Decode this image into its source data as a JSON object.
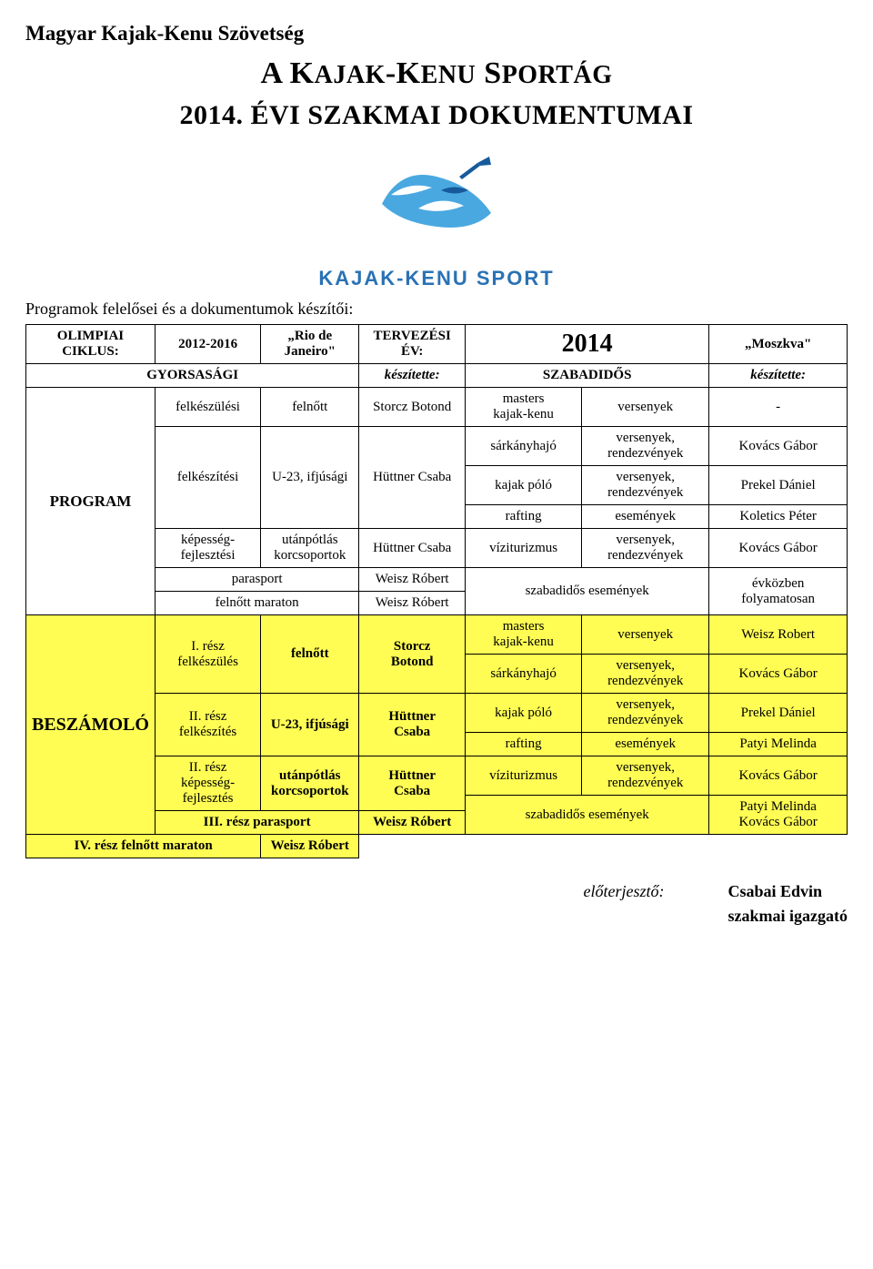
{
  "header": "Magyar Kajak-Kenu Szövetség",
  "mainTitle": {
    "pre": "A K",
    "mid1": "AJAK",
    "dash": "-K",
    "mid2": "ENU",
    "sp": " S",
    "mid3": "PORTÁG"
  },
  "subtitle": "2014. ÉVI SZAKMAI DOKUMENTUMAI",
  "logoText": "KAJAK-KENU SPORT",
  "subheading": "Programok felelősei és a dokumentumok készítői:",
  "row1": {
    "c1a": "OLIMPIAI",
    "c1b": "CIKLUS:",
    "c2": "2012-2016",
    "c3a": "„Rio de",
    "c3b": "Janeiro\"",
    "c4a": "TERVEZÉSI",
    "c4b": "ÉV:",
    "c5": "2014",
    "c6": "„Moszkva\""
  },
  "row2": {
    "c1": "GYORSASÁGI",
    "c2": "készítette:",
    "c3": "SZABADIDŐS",
    "c4": "készítette:"
  },
  "programLabel": "PROGRAM",
  "beszamoloLabel": "BESZÁMOLÓ",
  "p": {
    "r1": {
      "a": "felkészülési",
      "b": "felnőtt",
      "c": "Storcz Botond",
      "d1": "masters",
      "d2": "kajak-kenu",
      "e": "versenyek",
      "f": "-"
    },
    "r2": {
      "a": "felkészítési",
      "b": "U-23, ifjúsági",
      "c": "Hüttner Csaba",
      "d": "sárkányhajó",
      "e1": "versenyek,",
      "e2": "rendezvények",
      "f": "Kovács Gábor"
    },
    "r3": {
      "d": "kajak póló",
      "e1": "versenyek,",
      "e2": "rendezvények",
      "f": "Prekel Dániel"
    },
    "r4": {
      "d": "rafting",
      "e": "események",
      "f": "Koletics Péter"
    },
    "r5": {
      "a1": "képesség-",
      "a2": "fejlesztési",
      "b1": "utánpótlás",
      "b2": "korcsoportok",
      "c": "Hüttner Csaba",
      "d": "víziturizmus",
      "e1": "versenyek,",
      "e2": "rendezvények",
      "f": "Kovács Gábor"
    },
    "r6": {
      "b": "parasport",
      "c": "Weisz Róbert",
      "de": "szabadidős események",
      "f1": "évközben",
      "f2": "folyamatosan"
    },
    "r7": {
      "b": "felnőtt maraton",
      "c": "Weisz Róbert"
    }
  },
  "b": {
    "r1": {
      "a1": "I. rész",
      "a2": "felkészülés",
      "b": "felnőtt",
      "c1": "Storcz",
      "c2": "Botond",
      "d1": "masters",
      "d2": "kajak-kenu",
      "e": "versenyek",
      "f": "Weisz Robert"
    },
    "r2": {
      "d": "sárkányhajó",
      "e1": "versenyek,",
      "e2": "rendezvények",
      "f": "Kovács Gábor"
    },
    "r3": {
      "a1": "II. rész",
      "a2": "felkészítés",
      "b": "U-23, ifjúsági",
      "c1": "Hüttner",
      "c2": "Csaba",
      "d": "kajak póló",
      "e1": "versenyek,",
      "e2": "rendezvények",
      "f": "Prekel Dániel"
    },
    "r4": {
      "d": "rafting",
      "e": "események",
      "f": "Patyi Melinda"
    },
    "r5": {
      "a1": "II. rész",
      "a2": "képesség-",
      "a3": "fejlesztés",
      "b1": "utánpótlás",
      "b2": "korcsoportok",
      "c1": "Hüttner",
      "c2": "Csaba",
      "d": "víziturizmus",
      "e1": "versenyek,",
      "e2": "rendezvények",
      "f": "Kovács Gábor"
    },
    "r6": {
      "ab": "III. rész parasport",
      "c": "Weisz Róbert",
      "de": "szabadidős események",
      "f1": "Patyi Melinda",
      "f2": "Kovács Gábor"
    },
    "r7": {
      "ab": "IV. rész felnőtt maraton",
      "c": "Weisz Róbert"
    }
  },
  "footer": {
    "label": "előterjesztő:",
    "name": "Csabai Edvin",
    "role": "szakmai igazgató"
  },
  "colors": {
    "yellow": "#fffd54",
    "logo": "#2a72b5"
  }
}
